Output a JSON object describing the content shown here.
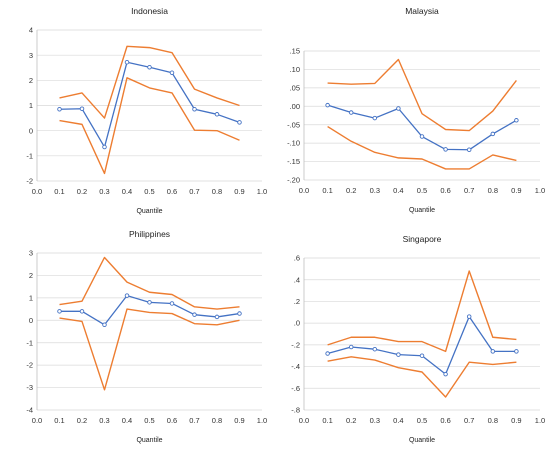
{
  "colors": {
    "point_estimate": "#4472c4",
    "confidence_band": "#ed7d31",
    "grid": "#d9d9d9"
  },
  "chart_data": [
    {
      "type": "line",
      "title": "Indonesia",
      "xlabel": "Quantile",
      "ylabel": "",
      "x": [
        0.1,
        0.2,
        0.3,
        0.4,
        0.5,
        0.6,
        0.7,
        0.8,
        0.9
      ],
      "xlim": [
        0.0,
        1.0
      ],
      "xticks": [
        0.0,
        0.1,
        0.2,
        0.3,
        0.4,
        0.5,
        0.6,
        0.7,
        0.8,
        0.9,
        1.0
      ],
      "xtick_labels": [
        "0.0",
        "0.1",
        "0.2",
        "0.3",
        "0.4",
        "0.5",
        "0.6",
        "0.7",
        "0.8",
        "0.9",
        "1.0"
      ],
      "ylim": [
        -2,
        4
      ],
      "yticks": [
        -2,
        -1,
        0,
        1,
        2,
        3,
        4
      ],
      "ytick_labels": [
        "-2",
        "-1",
        "0",
        "1",
        "2",
        "3",
        "4"
      ],
      "grid": "horizontal",
      "series": [
        {
          "role": "upper",
          "values": [
            1.3,
            1.5,
            0.5,
            3.35,
            3.3,
            3.1,
            1.65,
            1.3,
            1.0
          ]
        },
        {
          "role": "estimate",
          "values": [
            0.85,
            0.87,
            -0.65,
            2.72,
            2.52,
            2.3,
            0.85,
            0.65,
            0.33
          ]
        },
        {
          "role": "lower",
          "values": [
            0.4,
            0.25,
            -1.7,
            2.1,
            1.7,
            1.5,
            0.02,
            0.0,
            -0.38
          ]
        }
      ]
    },
    {
      "type": "line",
      "title": "Malaysia",
      "xlabel": "Quantile",
      "ylabel": "",
      "x": [
        0.1,
        0.2,
        0.3,
        0.4,
        0.5,
        0.6,
        0.7,
        0.8,
        0.9
      ],
      "xlim": [
        0.0,
        1.0
      ],
      "xticks": [
        0.0,
        0.1,
        0.2,
        0.3,
        0.4,
        0.5,
        0.6,
        0.7,
        0.8,
        0.9,
        1.0
      ],
      "xtick_labels": [
        "0.0",
        "0.1",
        "0.2",
        "0.3",
        "0.4",
        "0.5",
        "0.6",
        "0.7",
        "0.8",
        "0.9",
        "1.0"
      ],
      "ylim": [
        -0.2,
        0.15
      ],
      "yticks": [
        -0.2,
        -0.15,
        -0.1,
        -0.05,
        0.0,
        0.05,
        0.1,
        0.15
      ],
      "ytick_labels": [
        "-.20",
        "-.15",
        "-.10",
        "-.05",
        ".00",
        ".05",
        ".10",
        ".15"
      ],
      "grid": "horizontal",
      "series": [
        {
          "role": "upper",
          "values": [
            0.063,
            0.06,
            0.062,
            0.127,
            -0.02,
            -0.063,
            -0.066,
            -0.013,
            0.07
          ]
        },
        {
          "role": "estimate",
          "values": [
            0.003,
            -0.017,
            -0.032,
            -0.006,
            -0.082,
            -0.117,
            -0.118,
            -0.075,
            -0.038
          ]
        },
        {
          "role": "lower",
          "values": [
            -0.055,
            -0.095,
            -0.125,
            -0.14,
            -0.143,
            -0.17,
            -0.17,
            -0.132,
            -0.147
          ]
        }
      ]
    },
    {
      "type": "line",
      "title": "Philippines",
      "xlabel": "Quantile",
      "ylabel": "",
      "x": [
        0.1,
        0.2,
        0.3,
        0.4,
        0.5,
        0.6,
        0.7,
        0.8,
        0.9
      ],
      "xlim": [
        0.0,
        1.0
      ],
      "xticks": [
        0.0,
        0.1,
        0.2,
        0.3,
        0.4,
        0.5,
        0.6,
        0.7,
        0.8,
        0.9,
        1.0
      ],
      "xtick_labels": [
        "0.0",
        "0.1",
        "0.2",
        "0.3",
        "0.4",
        "0.5",
        "0.6",
        "0.7",
        "0.8",
        "0.9",
        "1.0"
      ],
      "ylim": [
        -4,
        3
      ],
      "yticks": [
        -4,
        -3,
        -2,
        -1,
        0,
        1,
        2,
        3
      ],
      "ytick_labels": [
        "-4",
        "-3",
        "-2",
        "-1",
        "0",
        "1",
        "2",
        "3"
      ],
      "grid": "horizontal",
      "series": [
        {
          "role": "upper",
          "values": [
            0.7,
            0.85,
            2.8,
            1.7,
            1.25,
            1.15,
            0.6,
            0.5,
            0.6
          ]
        },
        {
          "role": "estimate",
          "values": [
            0.4,
            0.4,
            -0.2,
            1.1,
            0.8,
            0.75,
            0.25,
            0.15,
            0.3
          ]
        },
        {
          "role": "lower",
          "values": [
            0.1,
            -0.05,
            -3.1,
            0.5,
            0.35,
            0.3,
            -0.15,
            -0.2,
            0.0
          ]
        }
      ]
    },
    {
      "type": "line",
      "title": "Singapore",
      "xlabel": "Quantile",
      "ylabel": "",
      "x": [
        0.1,
        0.2,
        0.3,
        0.4,
        0.5,
        0.6,
        0.7,
        0.8,
        0.9
      ],
      "xlim": [
        0.0,
        1.0
      ],
      "xticks": [
        0.0,
        0.1,
        0.2,
        0.3,
        0.4,
        0.5,
        0.6,
        0.7,
        0.8,
        0.9,
        1.0
      ],
      "xtick_labels": [
        "0.0",
        "0.1",
        "0.2",
        "0.3",
        "0.4",
        "0.5",
        "0.6",
        "0.7",
        "0.8",
        "0.9",
        "1.0"
      ],
      "ylim": [
        -0.8,
        0.6
      ],
      "yticks": [
        -0.8,
        -0.6,
        -0.4,
        -0.2,
        0.0,
        0.2,
        0.4,
        0.6
      ],
      "ytick_labels": [
        "-.8",
        "-.6",
        "-.4",
        "-.2",
        ".0",
        ".2",
        ".4",
        ".6"
      ],
      "grid": "horizontal",
      "series": [
        {
          "role": "upper",
          "values": [
            -0.2,
            -0.13,
            -0.13,
            -0.17,
            -0.17,
            -0.26,
            0.48,
            -0.13,
            -0.15
          ]
        },
        {
          "role": "estimate",
          "values": [
            -0.28,
            -0.22,
            -0.24,
            -0.29,
            -0.3,
            -0.47,
            0.06,
            -0.26,
            -0.26
          ]
        },
        {
          "role": "lower",
          "values": [
            -0.35,
            -0.31,
            -0.34,
            -0.41,
            -0.45,
            -0.68,
            -0.36,
            -0.38,
            -0.36
          ]
        }
      ]
    }
  ]
}
